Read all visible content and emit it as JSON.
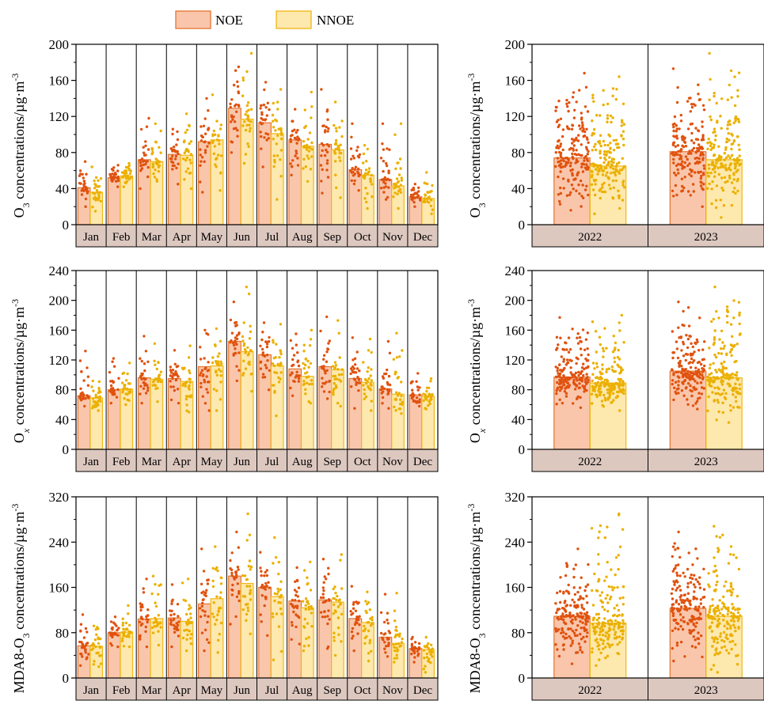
{
  "legend": {
    "noe": "NOE",
    "nnoe": "NNOE"
  },
  "colors": {
    "noe_fill": "#f9c6ab",
    "noe_edge": "#e5742e",
    "noe_dot": "#e0520f",
    "nnoe_fill": "#fde8ad",
    "nnoe_edge": "#f0b712",
    "nnoe_dot": "#ebb000",
    "strip": "#ddc8c0",
    "line": "#000000"
  },
  "chart_data": [
    {
      "type": "bar",
      "panel": "monthly-o3",
      "ylabel": "O3 concentrations/µg·m-3",
      "ylim": [
        0,
        200
      ],
      "yticks": [
        0,
        40,
        80,
        120,
        160,
        200
      ],
      "categories": [
        "Jan",
        "Feb",
        "Mar",
        "Apr",
        "May",
        "Jun",
        "Jul",
        "Aug",
        "Sep",
        "Oct",
        "Nov",
        "Dec"
      ],
      "series": [
        {
          "name": "NOE",
          "values": [
            41,
            52,
            72,
            78,
            92,
            129,
            113,
            94,
            89,
            61,
            50,
            31
          ],
          "ranges": [
            [
              20,
              70
            ],
            [
              42,
              66
            ],
            [
              40,
              118
            ],
            [
              45,
              106
            ],
            [
              36,
              140
            ],
            [
              80,
              175
            ],
            [
              64,
              158
            ],
            [
              55,
              128
            ],
            [
              35,
              150
            ],
            [
              38,
              112
            ],
            [
              28,
              112
            ],
            [
              20,
              45
            ]
          ]
        },
        {
          "name": "NNOE",
          "values": [
            36,
            54,
            70,
            77,
            94,
            117,
            101,
            87,
            83,
            55,
            43,
            29
          ],
          "ranges": [
            [
              15,
              64
            ],
            [
              42,
              68
            ],
            [
              48,
              112
            ],
            [
              40,
              123
            ],
            [
              38,
              144
            ],
            [
              68,
              190
            ],
            [
              28,
              150
            ],
            [
              48,
              147
            ],
            [
              30,
              136
            ],
            [
              18,
              88
            ],
            [
              18,
              112
            ],
            [
              12,
              58
            ]
          ]
        }
      ]
    },
    {
      "type": "bar",
      "panel": "yearly-o3",
      "ylabel": "O3 concentrations/µg·m-3",
      "ylim": [
        0,
        200
      ],
      "yticks": [
        0,
        40,
        80,
        120,
        160,
        200
      ],
      "categories": [
        "2022",
        "2023"
      ],
      "series": [
        {
          "name": "NOE",
          "values": [
            74,
            81
          ],
          "ranges": [
            [
              16,
              168
            ],
            [
              20,
              173
            ]
          ]
        },
        {
          "name": "NNOE",
          "values": [
            65,
            72
          ],
          "ranges": [
            [
              12,
              164
            ],
            [
              8,
              190
            ]
          ]
        }
      ]
    },
    {
      "type": "bar",
      "panel": "monthly-ox",
      "ylabel": "Ox concentrations/µg·m-3",
      "ylim": [
        0,
        240
      ],
      "yticks": [
        0,
        40,
        80,
        120,
        160,
        200,
        240
      ],
      "categories": [
        "Jan",
        "Feb",
        "Mar",
        "Apr",
        "May",
        "Jun",
        "Jul",
        "Aug",
        "Sep",
        "Oct",
        "Nov",
        "Dec"
      ],
      "series": [
        {
          "name": "NOE",
          "values": [
            72,
            80,
            96,
            95,
            111,
            145,
            127,
            108,
            111,
            95,
            81,
            73
          ],
          "ranges": [
            [
              58,
              132
            ],
            [
              62,
              122
            ],
            [
              62,
              152
            ],
            [
              62,
              133
            ],
            [
              52,
              160
            ],
            [
              92,
              198
            ],
            [
              80,
              170
            ],
            [
              72,
              155
            ],
            [
              68,
              178
            ],
            [
              55,
              150
            ],
            [
              55,
              145
            ],
            [
              58,
              102
            ]
          ]
        },
        {
          "name": "NNOE",
          "values": [
            69,
            81,
            94,
            91,
            112,
            131,
            112,
            98,
            107,
            90,
            74,
            71
          ],
          "ranges": [
            [
              52,
              92
            ],
            [
              60,
              116
            ],
            [
              64,
              142
            ],
            [
              50,
              139
            ],
            [
              52,
              162
            ],
            [
              78,
              218
            ],
            [
              45,
              168
            ],
            [
              62,
              160
            ],
            [
              58,
              173
            ],
            [
              52,
              148
            ],
            [
              48,
              156
            ],
            [
              54,
              95
            ]
          ]
        }
      ]
    },
    {
      "type": "bar",
      "panel": "yearly-ox",
      "ylabel": "Ox concentrations/µg·m-3",
      "ylim": [
        0,
        240
      ],
      "yticks": [
        0,
        40,
        80,
        120,
        160,
        200,
        240
      ],
      "categories": [
        "2022",
        "2023"
      ],
      "series": [
        {
          "name": "NOE",
          "values": [
            97,
            105
          ],
          "ranges": [
            [
              56,
              177
            ],
            [
              54,
              198
            ]
          ]
        },
        {
          "name": "NNOE",
          "values": [
            89,
            96
          ],
          "ranges": [
            [
              52,
              180
            ],
            [
              36,
              218
            ]
          ]
        }
      ]
    },
    {
      "type": "bar",
      "panel": "monthly-mda8",
      "ylabel": "MDA8-O3 concentrations/µg·m-3",
      "ylim": [
        0,
        320
      ],
      "yticks": [
        0,
        80,
        160,
        240,
        320
      ],
      "categories": [
        "Jan",
        "Feb",
        "Mar",
        "Apr",
        "May",
        "Jun",
        "Jul",
        "Aug",
        "Sep",
        "Oct",
        "Nov",
        "Dec"
      ],
      "series": [
        {
          "name": "NOE",
          "values": [
            57,
            80,
            104,
            106,
            131,
            180,
            160,
            136,
            138,
            105,
            72,
            52
          ],
          "ranges": [
            [
              22,
              112
            ],
            [
              55,
              108
            ],
            [
              55,
              175
            ],
            [
              55,
              165
            ],
            [
              48,
              228
            ],
            [
              95,
              258
            ],
            [
              75,
              222
            ],
            [
              60,
              195
            ],
            [
              52,
              210
            ],
            [
              48,
              162
            ],
            [
              38,
              148
            ],
            [
              28,
              72
            ]
          ]
        },
        {
          "name": "NNOE",
          "values": [
            56,
            81,
            105,
            100,
            140,
            167,
            144,
            124,
            134,
            98,
            61,
            50
          ],
          "ranges": [
            [
              20,
              92
            ],
            [
              55,
              128
            ],
            [
              58,
              180
            ],
            [
              48,
              175
            ],
            [
              45,
              232
            ],
            [
              78,
              290
            ],
            [
              32,
              248
            ],
            [
              48,
              205
            ],
            [
              40,
              218
            ],
            [
              30,
              152
            ],
            [
              28,
              150
            ],
            [
              10,
              72
            ]
          ]
        }
      ]
    },
    {
      "type": "bar",
      "panel": "yearly-mda8",
      "ylabel": "MDA8-O3 concentrations/µg·m-3",
      "ylim": [
        0,
        320
      ],
      "yticks": [
        0,
        80,
        160,
        240,
        320
      ],
      "categories": [
        "2022",
        "2023"
      ],
      "series": [
        {
          "name": "NOE",
          "values": [
            109,
            123
          ],
          "ranges": [
            [
              25,
              228
            ],
            [
              30,
              258
            ]
          ]
        },
        {
          "name": "NNOE",
          "values": [
            97,
            109
          ],
          "ranges": [
            [
              22,
              290
            ],
            [
              10,
              268
            ]
          ]
        }
      ]
    }
  ]
}
